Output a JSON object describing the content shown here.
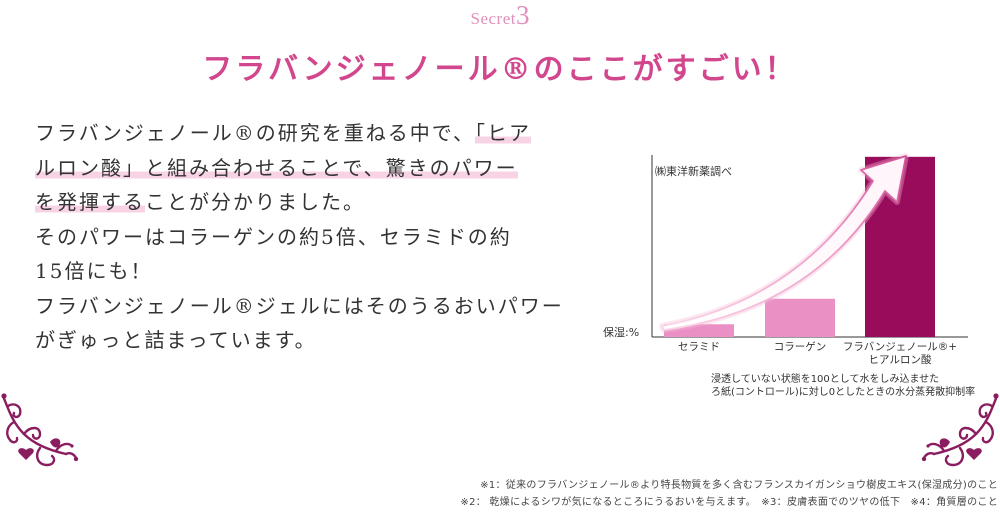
{
  "header": {
    "secret_label": "Secret",
    "secret_number": "3",
    "title": "フラバンジェノール®のここがすごい！"
  },
  "intro": {
    "lines": [
      [
        "フラバンジェノール®の研究を重ねる中で、",
        "「ヒア"
      ],
      [
        "ルロン酸」と組み合わせることで、驚きのパワー"
      ],
      [
        "を発揮する",
        "ことが分かりました。"
      ],
      [
        "そのパワーはコラーゲンの約5倍、セラミドの約"
      ],
      [
        "15倍にも！"
      ],
      [
        "フラバンジェノール®ジェルにはそのうるおいパワー"
      ],
      [
        "がぎゅっと詰まっています。"
      ]
    ]
  },
  "chart_data": {
    "type": "bar",
    "categories": [
      "セラミド",
      "コラーゲン",
      "フラバンジェノール®+\nヒアルロン酸"
    ],
    "values": [
      7,
      21,
      99
    ],
    "xlabel": "",
    "ylabel": "保湿:%",
    "ylim": [
      0,
      100
    ],
    "grid": false,
    "source_note": "㈱東洋新薬調べ",
    "caption": [
      "浸透していない状態を100として水をしみ込ませた",
      "ろ紙(コントロール)に対し0としたときの水分蒸発散抑制率"
    ],
    "bar_colors": [
      "#ea90c4",
      "#ea90c4",
      "#990b5b"
    ]
  },
  "footnotes": [
    "※1：従来のフラバンジェノール®より特長物質を多く含むフランスカイガンショウ樹皮エキス(保湿成分)のこと",
    "※2： 乾燥によるシワが気になるところにうるおいを与えます。　※3：皮膚表面でのツヤの低下　※4：角質層のこと"
  ],
  "icons": {
    "trend_arrow": "curved-arrow-icon",
    "left_ornament": "flourish-icon",
    "right_ornament": "flourish-icon"
  },
  "colors": {
    "accent": "#d2468d",
    "secret": "#e38fbd",
    "highlight": "#f8d3e6",
    "ornament": "#8a1d5f",
    "text": "#333333"
  }
}
